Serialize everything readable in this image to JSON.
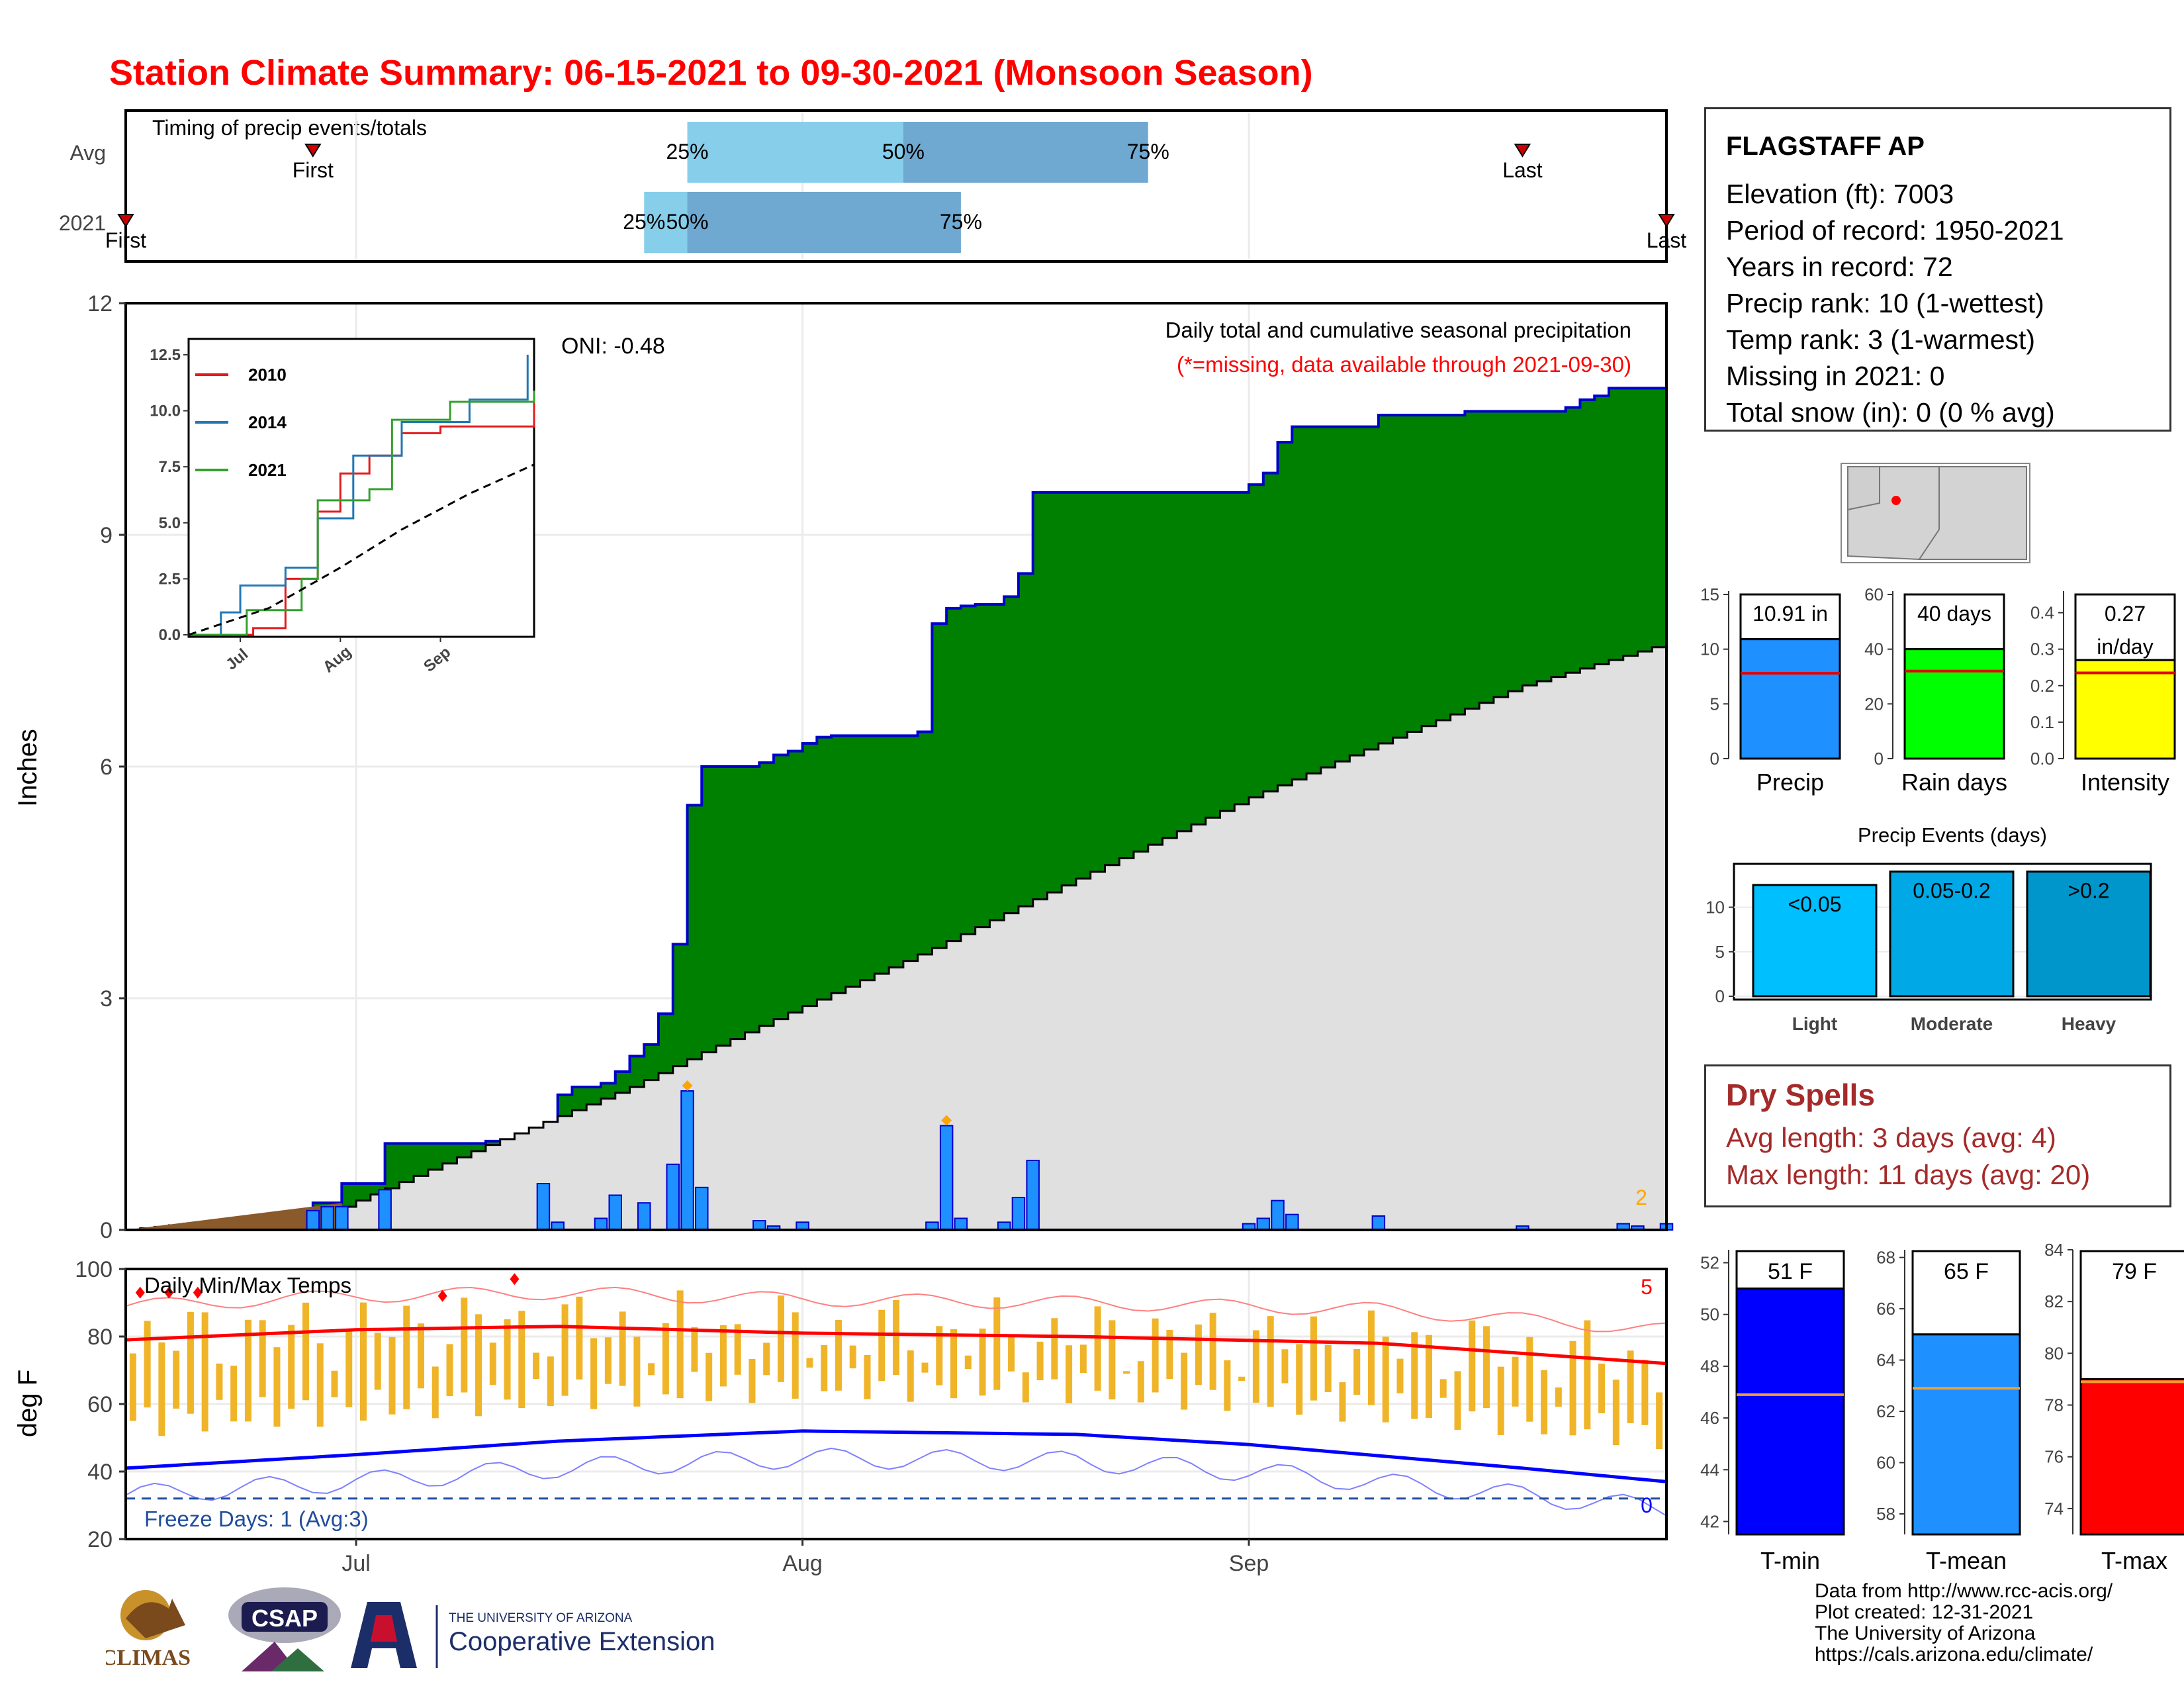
{
  "title": "Station Climate Summary: 06-15-2021 to 09-30-2021 (Monsoon Season)",
  "colors": {
    "title": "#ff0000",
    "cumulative_fill": "#008000",
    "cumulative_line": "#0000cc",
    "avg_fill": "#e0e0e0",
    "daily_bar": "#1e90ff",
    "temp_bar": "#f0b429",
    "tmax_line": "#ff0000",
    "tmin_line": "#0000ff",
    "early": "#8b5a2b"
  },
  "timing_panel": {
    "title": "Timing of precip events/totals",
    "row_labels": [
      "Avg",
      "2021"
    ],
    "avg": {
      "first": "First",
      "last": "Last",
      "p25": "25%",
      "p50": "50%",
      "p75": "75%"
    },
    "y2021": {
      "first": "First",
      "last": "Last",
      "p25": "25%",
      "p50": "50%",
      "p75": "75%"
    }
  },
  "precip_panel": {
    "y_label": "Inches",
    "y_ticks": [
      "0",
      "3",
      "6",
      "9",
      "12"
    ],
    "x_ticks": [
      "Jul",
      "Aug",
      "Sep"
    ],
    "oni": "ONI: -0.48",
    "caption1": "Daily total and cumulative seasonal precipitation",
    "caption2": "(*=missing, data available through 2021-09-30)",
    "count_label": "2"
  },
  "inset": {
    "y_ticks": [
      "0.0",
      "2.5",
      "5.0",
      "7.5",
      "10.0",
      "12.5"
    ],
    "x_ticks": [
      "Jul",
      "Aug",
      "Sep"
    ],
    "legend": [
      "2010",
      "2014",
      "2021"
    ]
  },
  "temp_panel": {
    "y_label": "deg F",
    "title": "Daily Min/Max Temps",
    "y_ticks": [
      "20",
      "40",
      "60",
      "80",
      "100"
    ],
    "x_ticks": [
      "Jul",
      "Aug",
      "Sep"
    ],
    "freeze": "Freeze Days: 1 (Avg:3)",
    "count_hot": "5",
    "count_cold": "0"
  },
  "station": {
    "name": "FLAGSTAFF AP",
    "lines": [
      "Elevation (ft): 7003",
      "Period of record: 1950-2021",
      "Years in record: 72",
      "Precip rank: 10 (1-wettest)",
      "Temp rank: 3 (1-warmest)",
      "Missing in 2021: 0",
      "Total snow (in): 0 (0 % avg)"
    ]
  },
  "summary_bars": {
    "precip": {
      "label": "Precip",
      "value_text": "10.91 in",
      "value": 10.91,
      "avg": 7.8,
      "ticks": [
        "0",
        "5",
        "10",
        "15"
      ],
      "max": 15
    },
    "rain_days": {
      "label": "Rain days",
      "value_text": "40 days",
      "value": 40,
      "avg": 32,
      "ticks": [
        "0",
        "20",
        "40",
        "60"
      ],
      "max": 60
    },
    "intensity": {
      "label": "Intensity",
      "value_text": "0.27",
      "value_text2": "in/day",
      "value": 0.27,
      "avg": 0.235,
      "ticks": [
        "0.0",
        "0.1",
        "0.2",
        "0.3",
        "0.4"
      ],
      "max": 0.45
    }
  },
  "precip_events": {
    "title": "Precip Events (days)",
    "ticks": [
      "0",
      "5",
      "10"
    ],
    "bars": [
      {
        "label": "Light",
        "range": "<0.05",
        "value": 12.5
      },
      {
        "label": "Moderate",
        "range": "0.05-0.2",
        "value": 14
      },
      {
        "label": "Heavy",
        "range": ">0.2",
        "value": 14
      }
    ]
  },
  "dry_spells": {
    "title": "Dry Spells",
    "avg": "Avg length: 3 days (avg: 4)",
    "max": "Max length: 11 days (avg: 20)"
  },
  "temp_bars": {
    "tmin": {
      "label": "T-min",
      "value_text": "51 F",
      "value": 51,
      "avg": 46.9,
      "ticks": [
        "42",
        "44",
        "46",
        "48",
        "50",
        "52"
      ],
      "min": 41.5,
      "max": 52.5
    },
    "tmean": {
      "label": "T-mean",
      "value_text": "65 F",
      "value": 65,
      "avg": 62.9,
      "ticks": [
        "58",
        "60",
        "62",
        "64",
        "66",
        "68"
      ],
      "min": 57.2,
      "max": 68.3
    },
    "tmax": {
      "label": "T-max",
      "value_text": "79 F",
      "value": 79,
      "avg": 78.9,
      "ticks": [
        "74",
        "76",
        "78",
        "80",
        "82",
        "84"
      ],
      "min": 73,
      "max": 84
    }
  },
  "credits": [
    "Data from http://www.rcc-acis.org/",
    "Plot created: 12-31-2021",
    "The University of Arizona",
    "https://cals.arizona.edu/climate/"
  ],
  "logos": {
    "climas": "CLIMAS",
    "csap": "CSAP",
    "ua_small": "THE UNIVERSITY OF ARIZONA",
    "ua_big": "Cooperative Extension"
  },
  "chart_data": {
    "type": "area",
    "x_range": [
      "2021-06-15",
      "2021-09-30"
    ],
    "ylim": [
      0,
      12
    ],
    "cumulative_2021_steps": [
      [
        "2021-06-15",
        0.0
      ],
      [
        "2021-06-20",
        0.05
      ],
      [
        "2021-06-28",
        0.35
      ],
      [
        "2021-06-30",
        0.6
      ],
      [
        "2021-07-02",
        0.6
      ],
      [
        "2021-07-03",
        1.12
      ],
      [
        "2021-07-10",
        1.15
      ],
      [
        "2021-07-14",
        1.3
      ],
      [
        "2021-07-15",
        1.75
      ],
      [
        "2021-07-16",
        1.85
      ],
      [
        "2021-07-18",
        1.9
      ],
      [
        "2021-07-19",
        2.05
      ],
      [
        "2021-07-20",
        2.25
      ],
      [
        "2021-07-21",
        2.4
      ],
      [
        "2021-07-22",
        2.8
      ],
      [
        "2021-07-23",
        3.7
      ],
      [
        "2021-07-24",
        5.5
      ],
      [
        "2021-07-25",
        6.0
      ],
      [
        "2021-07-29",
        6.05
      ],
      [
        "2021-07-30",
        6.15
      ],
      [
        "2021-07-31",
        6.2
      ],
      [
        "2021-08-01",
        6.3
      ],
      [
        "2021-08-02",
        6.38
      ],
      [
        "2021-08-03",
        6.4
      ],
      [
        "2021-08-09",
        6.45
      ],
      [
        "2021-08-10",
        7.85
      ],
      [
        "2021-08-11",
        8.05
      ],
      [
        "2021-08-12",
        8.08
      ],
      [
        "2021-08-13",
        8.1
      ],
      [
        "2021-08-15",
        8.2
      ],
      [
        "2021-08-16",
        8.5
      ],
      [
        "2021-08-17",
        9.55
      ],
      [
        "2021-09-01",
        9.65
      ],
      [
        "2021-09-02",
        9.8
      ],
      [
        "2021-09-03",
        10.2
      ],
      [
        "2021-09-04",
        10.4
      ],
      [
        "2021-09-10",
        10.55
      ],
      [
        "2021-09-16",
        10.6
      ],
      [
        "2021-09-23",
        10.65
      ],
      [
        "2021-09-24",
        10.75
      ],
      [
        "2021-09-25",
        10.8
      ],
      [
        "2021-09-26",
        10.9
      ],
      [
        "2021-09-30",
        10.91
      ]
    ],
    "avg_cumulative": [
      [
        "2021-06-15",
        0.0
      ],
      [
        "2021-06-30",
        0.3
      ],
      [
        "2021-07-10",
        1.1
      ],
      [
        "2021-07-20",
        1.85
      ],
      [
        "2021-07-25",
        2.3
      ],
      [
        "2021-08-01",
        2.9
      ],
      [
        "2021-08-10",
        3.65
      ],
      [
        "2021-08-20",
        4.55
      ],
      [
        "2021-09-01",
        5.6
      ],
      [
        "2021-09-10",
        6.3
      ],
      [
        "2021-09-20",
        7.05
      ],
      [
        "2021-09-30",
        7.6
      ]
    ],
    "daily_precip": [
      [
        "2021-06-28",
        0.25
      ],
      [
        "2021-06-29",
        0.3
      ],
      [
        "2021-06-30",
        0.3
      ],
      [
        "2021-07-03",
        0.52
      ],
      [
        "2021-07-14",
        0.6
      ],
      [
        "2021-07-15",
        0.1
      ],
      [
        "2021-07-18",
        0.15
      ],
      [
        "2021-07-19",
        0.45
      ],
      [
        "2021-07-21",
        0.35
      ],
      [
        "2021-07-23",
        0.85
      ],
      [
        "2021-07-24",
        1.8
      ],
      [
        "2021-07-25",
        0.55
      ],
      [
        "2021-07-29",
        0.12
      ],
      [
        "2021-07-30",
        0.05
      ],
      [
        "2021-08-01",
        0.1
      ],
      [
        "2021-08-10",
        0.1
      ],
      [
        "2021-08-11",
        1.35
      ],
      [
        "2021-08-12",
        0.15
      ],
      [
        "2021-08-15",
        0.1
      ],
      [
        "2021-08-16",
        0.42
      ],
      [
        "2021-08-17",
        0.9
      ],
      [
        "2021-09-01",
        0.08
      ],
      [
        "2021-09-02",
        0.15
      ],
      [
        "2021-09-03",
        0.38
      ],
      [
        "2021-09-04",
        0.2
      ],
      [
        "2021-09-10",
        0.18
      ],
      [
        "2021-09-20",
        0.05
      ],
      [
        "2021-09-27",
        0.08
      ],
      [
        "2021-09-28",
        0.05
      ],
      [
        "2021-09-30",
        0.08
      ]
    ],
    "inset_series": {
      "2010": [
        [
          "2021-06-15",
          0
        ],
        [
          "2021-07-05",
          0.3
        ],
        [
          "2021-07-15",
          2.5
        ],
        [
          "2021-07-25",
          5.5
        ],
        [
          "2021-08-01",
          7.2
        ],
        [
          "2021-08-10",
          8.0
        ],
        [
          "2021-08-20",
          9.0
        ],
        [
          "2021-09-01",
          9.3
        ],
        [
          "2021-09-30",
          10.5
        ]
      ],
      "2014": [
        [
          "2021-06-15",
          0
        ],
        [
          "2021-06-25",
          1.0
        ],
        [
          "2021-07-01",
          2.2
        ],
        [
          "2021-07-15",
          3.0
        ],
        [
          "2021-07-25",
          5.2
        ],
        [
          "2021-08-05",
          8.0
        ],
        [
          "2021-08-20",
          9.5
        ],
        [
          "2021-09-10",
          10.5
        ],
        [
          "2021-09-28",
          12.5
        ]
      ],
      "2021": [
        [
          "2021-06-15",
          0
        ],
        [
          "2021-07-03",
          1.1
        ],
        [
          "2021-07-20",
          2.5
        ],
        [
          "2021-07-25",
          6.0
        ],
        [
          "2021-08-10",
          6.5
        ],
        [
          "2021-08-17",
          9.6
        ],
        [
          "2021-09-04",
          10.4
        ],
        [
          "2021-09-30",
          10.9
        ]
      ],
      "average": [
        [
          "2021-06-15",
          0
        ],
        [
          "2021-07-10",
          1.2
        ],
        [
          "2021-08-01",
          3.0
        ],
        [
          "2021-08-20",
          4.7
        ],
        [
          "2021-09-10",
          6.3
        ],
        [
          "2021-09-30",
          7.6
        ]
      ]
    },
    "temp_ylim": [
      20,
      100
    ],
    "tmax_avg": [
      [
        "2021-06-15",
        79
      ],
      [
        "2021-07-01",
        82
      ],
      [
        "2021-07-15",
        83
      ],
      [
        "2021-08-01",
        81
      ],
      [
        "2021-08-20",
        80
      ],
      [
        "2021-09-10",
        78
      ],
      [
        "2021-09-30",
        72
      ]
    ],
    "tmin_avg": [
      [
        "2021-06-15",
        41
      ],
      [
        "2021-07-01",
        45
      ],
      [
        "2021-07-15",
        49
      ],
      [
        "2021-08-01",
        52
      ],
      [
        "2021-08-20",
        51
      ],
      [
        "2021-09-01",
        48
      ],
      [
        "2021-09-20",
        41
      ],
      [
        "2021-09-30",
        37
      ]
    ]
  }
}
